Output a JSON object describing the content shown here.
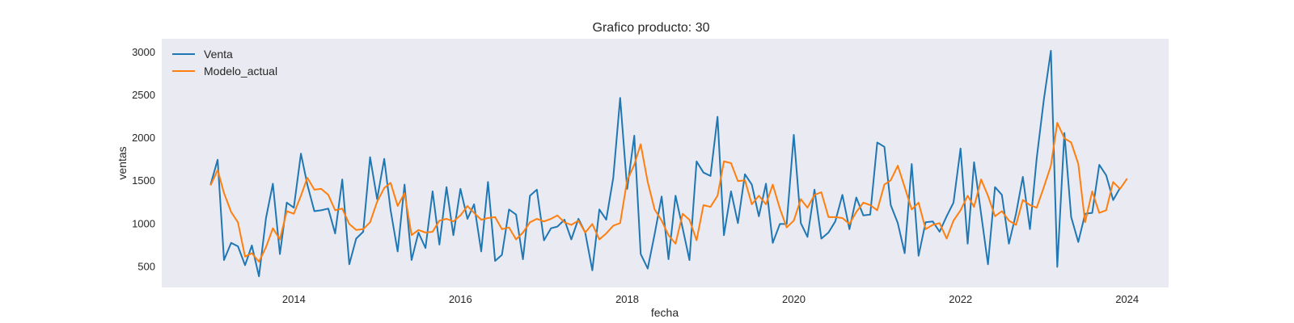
{
  "chart_data": {
    "type": "line",
    "title": "Grafico producto: 30",
    "xlabel": "fecha",
    "ylabel": "ventas",
    "xlim": [
      "2012-06-01",
      "2024-07-01"
    ],
    "ylim": [
      250,
      3150
    ],
    "x_ticks": [
      "2014",
      "2016",
      "2018",
      "2020",
      "2022",
      "2024"
    ],
    "y_ticks": [
      "500",
      "1000",
      "1500",
      "2000",
      "2500",
      "3000"
    ],
    "grid": false,
    "legend": "top-left",
    "start_date": "2013-01",
    "series": [
      {
        "name": "Venta",
        "color": "#1f77b4",
        "values": [
          1450,
          1740,
          570,
          770,
          730,
          510,
          740,
          380,
          1060,
          1460,
          640,
          1240,
          1180,
          1810,
          1450,
          1140,
          1150,
          1170,
          880,
          1510,
          520,
          820,
          900,
          1770,
          1280,
          1750,
          1150,
          670,
          1450,
          570,
          890,
          710,
          1370,
          750,
          1420,
          860,
          1400,
          1050,
          1220,
          670,
          1480,
          560,
          630,
          1160,
          1100,
          580,
          1320,
          1390,
          800,
          940,
          960,
          1040,
          810,
          1050,
          890,
          450,
          1160,
          1040,
          1530,
          2460,
          1400,
          2020,
          640,
          470,
          870,
          1310,
          580,
          1320,
          940,
          570,
          1720,
          1590,
          1550,
          2240,
          860,
          1370,
          1000,
          1570,
          1450,
          1080,
          1460,
          770,
          990,
          990,
          2030,
          1000,
          840,
          1390,
          820,
          890,
          1020,
          1330,
          930,
          1300,
          1090,
          1100,
          1940,
          1890,
          1210,
          1000,
          650,
          1690,
          620,
          1010,
          1020,
          900,
          1080,
          1240,
          1870,
          760,
          1710,
          1110,
          520,
          1420,
          1330,
          760,
          1110,
          1540,
          930,
          1760,
          2440,
          3010,
          490,
          2050,
          1070,
          780,
          1110,
          1120,
          1680,
          1560,
          1270,
          1410
        ]
      },
      {
        "name": "Modelo_actual",
        "color": "#ff7f0e",
        "values": [
          1440,
          1620,
          1350,
          1130,
          1010,
          610,
          650,
          550,
          720,
          940,
          810,
          1140,
          1110,
          1320,
          1530,
          1390,
          1400,
          1330,
          1150,
          1170,
          990,
          920,
          930,
          1010,
          1250,
          1410,
          1470,
          1200,
          1350,
          860,
          920,
          890,
          900,
          1030,
          1050,
          1020,
          1090,
          1200,
          1120,
          1040,
          1060,
          1070,
          930,
          950,
          810,
          890,
          1010,
          1050,
          1020,
          1050,
          1090,
          1010,
          980,
          1030,
          890,
          990,
          810,
          880,
          970,
          1000,
          1500,
          1680,
          1920,
          1480,
          1160,
          1030,
          860,
          760,
          1110,
          1040,
          800,
          1210,
          1190,
          1320,
          1720,
          1700,
          1490,
          1500,
          1220,
          1320,
          1220,
          1450,
          1170,
          950,
          1030,
          1280,
          1180,
          1330,
          1360,
          1070,
          1070,
          1060,
          990,
          1130,
          1240,
          1210,
          1150,
          1450,
          1500,
          1670,
          1420,
          1160,
          1240,
          930,
          980,
          1000,
          820,
          1030,
          1150,
          1320,
          1190,
          1510,
          1320,
          1080,
          1140,
          1030,
          980,
          1270,
          1210,
          1180,
          1420,
          1670,
          2170,
          1990,
          1940,
          1690,
          1010,
          1370,
          1120,
          1150,
          1480,
          1400,
          1520
        ]
      }
    ]
  }
}
